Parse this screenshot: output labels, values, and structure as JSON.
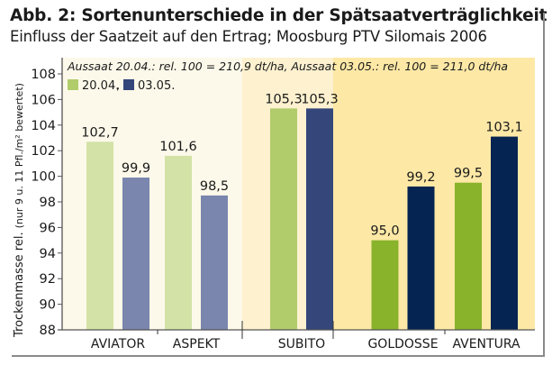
{
  "header": {
    "title": "Abb. 2: Sortenunterschiede in der Spätsaatverträglichkeit",
    "subtitle": "Einfluss der Saatzeit auf den Ertrag; Moosburg PTV Silomais 2006"
  },
  "chart_data": {
    "type": "bar",
    "title": "Abb. 2: Sortenunterschiede in der Spätsaatverträglichkeit",
    "subtitle": "Einfluss der Saatzeit auf den Ertrag; Moosburg PTV Silomais 2006",
    "annotation": "Aussaat 20.04.: rel. 100 = 210,9 dt/ha, Aussaat 03.05.: rel. 100 = 211,0 dt/ha",
    "ylabel_main": "Trockenmasse rel.",
    "ylabel_note": "(nur 9 u. 11 Pfl./m² bewertet)",
    "xlabel": "",
    "ylim": [
      88,
      108
    ],
    "yticks": [
      88,
      90,
      92,
      94,
      96,
      98,
      100,
      102,
      104,
      106,
      108
    ],
    "grid": false,
    "legend_position": "top-left",
    "categories": [
      "AVIATOR",
      "ASPEKT",
      "SUBITO",
      "GOLDOSSE",
      "AVENTURA"
    ],
    "groups": [
      "early",
      "early",
      "mid",
      "late",
      "late"
    ],
    "series": [
      {
        "name": "20.04.",
        "values": [
          102.7,
          101.6,
          105.3,
          95.0,
          99.5
        ],
        "labels": [
          "102,7",
          "101,6",
          "105,3",
          "95,0",
          "99,5"
        ]
      },
      {
        "name": "03.05.",
        "values": [
          99.9,
          98.5,
          105.3,
          99.2,
          103.1
        ],
        "labels": [
          "99,9",
          "98,5",
          "105,3",
          "99,2",
          "103,1"
        ]
      }
    ],
    "colors": {
      "band_early": "#fdf9ea",
      "band_mid": "#fdf1cf",
      "band_late": "#fde8a6",
      "series1_by_group": {
        "early": "#d3e2a6",
        "mid": "#b1cc6b",
        "late": "#88b32b"
      },
      "series2_by_group": {
        "early": "#7a86ad",
        "mid": "#34467a",
        "late": "#052452"
      },
      "legend_series1": "#b1cc6b",
      "legend_series2": "#34467a",
      "axis": "#555555"
    }
  }
}
